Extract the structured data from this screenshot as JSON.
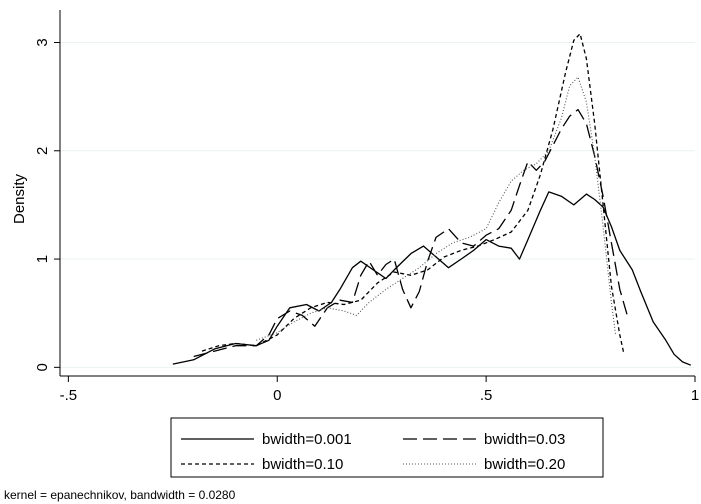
{
  "chart_data": {
    "type": "line",
    "ylabel": "Density",
    "xlabel": "",
    "xlim": [
      -0.52,
      1.0
    ],
    "ylim": [
      -0.08,
      3.3
    ],
    "x_ticks": [
      {
        "value": -0.5,
        "label": "-.5"
      },
      {
        "value": 0,
        "label": "0"
      },
      {
        "value": 0.5,
        "label": ".5"
      },
      {
        "value": 1,
        "label": "1"
      }
    ],
    "y_ticks": [
      {
        "value": 0,
        "label": "0"
      },
      {
        "value": 1,
        "label": "1"
      },
      {
        "value": 2,
        "label": "2"
      },
      {
        "value": 3,
        "label": "3"
      }
    ],
    "grid": "horizontal",
    "legend_position": "bottom",
    "note": "kernel = epanechnikov, bandwidth = 0.0280",
    "series": [
      {
        "name": "bwidth=0.001",
        "dash": "solid",
        "points": [
          [
            -0.25,
            0.03
          ],
          [
            -0.2,
            0.07
          ],
          [
            -0.15,
            0.17
          ],
          [
            -0.1,
            0.22
          ],
          [
            -0.05,
            0.2
          ],
          [
            -0.02,
            0.25
          ],
          [
            0.0,
            0.38
          ],
          [
            0.03,
            0.55
          ],
          [
            0.07,
            0.58
          ],
          [
            0.1,
            0.52
          ],
          [
            0.13,
            0.6
          ],
          [
            0.15,
            0.72
          ],
          [
            0.18,
            0.92
          ],
          [
            0.2,
            0.98
          ],
          [
            0.23,
            0.9
          ],
          [
            0.26,
            0.82
          ],
          [
            0.28,
            0.9
          ],
          [
            0.32,
            1.05
          ],
          [
            0.35,
            1.12
          ],
          [
            0.38,
            1.02
          ],
          [
            0.41,
            0.92
          ],
          [
            0.44,
            1.0
          ],
          [
            0.47,
            1.08
          ],
          [
            0.5,
            1.18
          ],
          [
            0.53,
            1.12
          ],
          [
            0.56,
            1.1
          ],
          [
            0.58,
            1.0
          ],
          [
            0.6,
            1.18
          ],
          [
            0.63,
            1.45
          ],
          [
            0.65,
            1.62
          ],
          [
            0.68,
            1.58
          ],
          [
            0.71,
            1.5
          ],
          [
            0.74,
            1.6
          ],
          [
            0.76,
            1.55
          ],
          [
            0.78,
            1.48
          ],
          [
            0.8,
            1.3
          ],
          [
            0.82,
            1.08
          ],
          [
            0.85,
            0.9
          ],
          [
            0.87,
            0.7
          ],
          [
            0.9,
            0.42
          ],
          [
            0.93,
            0.25
          ],
          [
            0.95,
            0.12
          ],
          [
            0.97,
            0.05
          ],
          [
            0.99,
            0.02
          ]
        ]
      },
      {
        "name": "bwidth=0.03",
        "dash": "longdash",
        "points": [
          [
            -0.2,
            0.1
          ],
          [
            -0.15,
            0.15
          ],
          [
            -0.1,
            0.2
          ],
          [
            -0.05,
            0.2
          ],
          [
            -0.02,
            0.3
          ],
          [
            0.0,
            0.45
          ],
          [
            0.03,
            0.52
          ],
          [
            0.06,
            0.48
          ],
          [
            0.09,
            0.38
          ],
          [
            0.12,
            0.55
          ],
          [
            0.15,
            0.62
          ],
          [
            0.18,
            0.6
          ],
          [
            0.2,
            0.85
          ],
          [
            0.22,
            0.98
          ],
          [
            0.24,
            0.85
          ],
          [
            0.26,
            0.95
          ],
          [
            0.28,
            1.0
          ],
          [
            0.3,
            0.72
          ],
          [
            0.32,
            0.55
          ],
          [
            0.34,
            0.7
          ],
          [
            0.36,
            0.98
          ],
          [
            0.38,
            1.2
          ],
          [
            0.41,
            1.28
          ],
          [
            0.44,
            1.15
          ],
          [
            0.47,
            1.12
          ],
          [
            0.5,
            1.22
          ],
          [
            0.53,
            1.28
          ],
          [
            0.56,
            1.45
          ],
          [
            0.58,
            1.68
          ],
          [
            0.6,
            1.9
          ],
          [
            0.62,
            1.82
          ],
          [
            0.64,
            1.9
          ],
          [
            0.66,
            2.05
          ],
          [
            0.68,
            2.2
          ],
          [
            0.7,
            2.32
          ],
          [
            0.72,
            2.38
          ],
          [
            0.74,
            2.25
          ],
          [
            0.76,
            1.95
          ],
          [
            0.78,
            1.58
          ],
          [
            0.8,
            1.15
          ],
          [
            0.82,
            0.72
          ],
          [
            0.84,
            0.45
          ]
        ]
      },
      {
        "name": "bwidth=0.10",
        "dash": "shortdash",
        "points": [
          [
            -0.18,
            0.15
          ],
          [
            -0.14,
            0.2
          ],
          [
            -0.1,
            0.22
          ],
          [
            -0.05,
            0.2
          ],
          [
            0.0,
            0.3
          ],
          [
            0.04,
            0.45
          ],
          [
            0.08,
            0.55
          ],
          [
            0.12,
            0.6
          ],
          [
            0.16,
            0.58
          ],
          [
            0.2,
            0.62
          ],
          [
            0.24,
            0.78
          ],
          [
            0.28,
            0.88
          ],
          [
            0.32,
            0.85
          ],
          [
            0.36,
            0.9
          ],
          [
            0.4,
            1.02
          ],
          [
            0.44,
            1.08
          ],
          [
            0.48,
            1.12
          ],
          [
            0.52,
            1.18
          ],
          [
            0.56,
            1.25
          ],
          [
            0.6,
            1.45
          ],
          [
            0.63,
            1.78
          ],
          [
            0.66,
            2.2
          ],
          [
            0.69,
            2.72
          ],
          [
            0.71,
            3.02
          ],
          [
            0.725,
            3.08
          ],
          [
            0.74,
            2.85
          ],
          [
            0.76,
            2.25
          ],
          [
            0.78,
            1.5
          ],
          [
            0.8,
            0.75
          ],
          [
            0.82,
            0.3
          ],
          [
            0.83,
            0.12
          ]
        ]
      },
      {
        "name": "bwidth=0.20",
        "dash": "dotted",
        "points": [
          [
            -0.05,
            0.25
          ],
          [
            0.0,
            0.32
          ],
          [
            0.04,
            0.42
          ],
          [
            0.08,
            0.5
          ],
          [
            0.12,
            0.55
          ],
          [
            0.16,
            0.52
          ],
          [
            0.19,
            0.48
          ],
          [
            0.22,
            0.6
          ],
          [
            0.26,
            0.72
          ],
          [
            0.3,
            0.82
          ],
          [
            0.34,
            0.92
          ],
          [
            0.38,
            1.05
          ],
          [
            0.42,
            1.15
          ],
          [
            0.46,
            1.2
          ],
          [
            0.5,
            1.28
          ],
          [
            0.53,
            1.52
          ],
          [
            0.56,
            1.72
          ],
          [
            0.59,
            1.82
          ],
          [
            0.62,
            1.88
          ],
          [
            0.65,
            2.0
          ],
          [
            0.68,
            2.3
          ],
          [
            0.7,
            2.6
          ],
          [
            0.72,
            2.68
          ],
          [
            0.74,
            2.45
          ],
          [
            0.76,
            1.95
          ],
          [
            0.78,
            1.3
          ],
          [
            0.8,
            0.6
          ],
          [
            0.81,
            0.3
          ]
        ]
      }
    ]
  }
}
